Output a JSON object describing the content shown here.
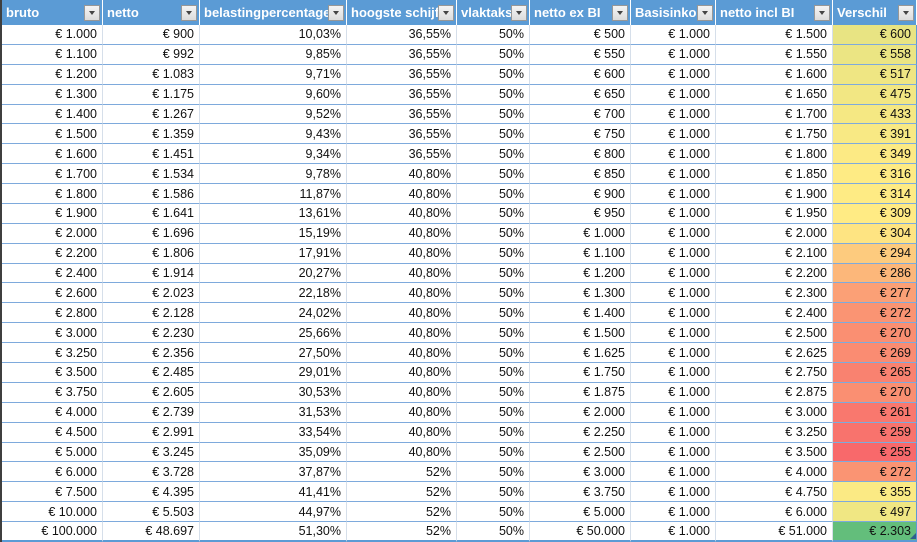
{
  "table": {
    "columns": [
      {
        "key": "bruto",
        "label": "bruto"
      },
      {
        "key": "netto",
        "label": "netto"
      },
      {
        "key": "belastingpercentage",
        "label": "belastingpercentage"
      },
      {
        "key": "hoogste_schijf",
        "label": "hoogste schijf"
      },
      {
        "key": "vlaktaks",
        "label": "vlaktaks"
      },
      {
        "key": "netto_ex_bi",
        "label": "netto ex BI"
      },
      {
        "key": "basisinkomen",
        "label": "Basisinkomen"
      },
      {
        "key": "netto_incl_bi",
        "label": "netto incl BI"
      },
      {
        "key": "verschil",
        "label": "Verschil"
      }
    ],
    "rows": [
      {
        "values": [
          "€ 1.000",
          "€ 900",
          "10,03%",
          "36,55%",
          "50%",
          "€ 500",
          "€ 1.000",
          "€ 1.500",
          "€ 600"
        ],
        "verschil_color": "#E8E483"
      },
      {
        "values": [
          "€ 1.100",
          "€ 992",
          "9,85%",
          "36,55%",
          "50%",
          "€ 550",
          "€ 1.000",
          "€ 1.550",
          "€ 558"
        ],
        "verschil_color": "#EBE583"
      },
      {
        "values": [
          "€ 1.200",
          "€ 1.083",
          "9,71%",
          "36,55%",
          "50%",
          "€ 600",
          "€ 1.000",
          "€ 1.600",
          "€ 517"
        ],
        "verschil_color": "#EFE683"
      },
      {
        "values": [
          "€ 1.300",
          "€ 1.175",
          "9,60%",
          "36,55%",
          "50%",
          "€ 650",
          "€ 1.000",
          "€ 1.650",
          "€ 475"
        ],
        "verschil_color": "#F2E783"
      },
      {
        "values": [
          "€ 1.400",
          "€ 1.267",
          "9,52%",
          "36,55%",
          "50%",
          "€ 700",
          "€ 1.000",
          "€ 1.700",
          "€ 433"
        ],
        "verschil_color": "#F5E883"
      },
      {
        "values": [
          "€ 1.500",
          "€ 1.359",
          "9,43%",
          "36,55%",
          "50%",
          "€ 750",
          "€ 1.000",
          "€ 1.750",
          "€ 391"
        ],
        "verschil_color": "#F8E984"
      },
      {
        "values": [
          "€ 1.600",
          "€ 1.451",
          "9,34%",
          "36,55%",
          "50%",
          "€ 800",
          "€ 1.000",
          "€ 1.800",
          "€ 349"
        ],
        "verschil_color": "#FCEA84"
      },
      {
        "values": [
          "€ 1.700",
          "€ 1.534",
          "9,78%",
          "40,80%",
          "50%",
          "€ 850",
          "€ 1.000",
          "€ 1.850",
          "€ 316"
        ],
        "verschil_color": "#FEEB84"
      },
      {
        "values": [
          "€ 1.800",
          "€ 1.586",
          "11,87%",
          "40,80%",
          "50%",
          "€ 900",
          "€ 1.000",
          "€ 1.900",
          "€ 314"
        ],
        "verschil_color": "#FEEB84"
      },
      {
        "values": [
          "€ 1.900",
          "€ 1.641",
          "13,61%",
          "40,80%",
          "50%",
          "€ 950",
          "€ 1.000",
          "€ 1.950",
          "€ 309"
        ],
        "verschil_color": "#FFEB84"
      },
      {
        "values": [
          "€ 2.000",
          "€ 1.696",
          "15,19%",
          "40,80%",
          "50%",
          "€ 1.000",
          "€ 1.000",
          "€ 2.000",
          "€ 304"
        ],
        "verschil_color": "#FEE482"
      },
      {
        "values": [
          "€ 2.200",
          "€ 1.806",
          "17,91%",
          "40,80%",
          "50%",
          "€ 1.100",
          "€ 1.000",
          "€ 2.100",
          "€ 294"
        ],
        "verschil_color": "#FDCB7E"
      },
      {
        "values": [
          "€ 2.400",
          "€ 1.914",
          "20,27%",
          "40,80%",
          "50%",
          "€ 1.200",
          "€ 1.000",
          "€ 2.200",
          "€ 286"
        ],
        "verschil_color": "#FCB77A"
      },
      {
        "values": [
          "€ 2.600",
          "€ 2.023",
          "22,18%",
          "40,80%",
          "50%",
          "€ 1.300",
          "€ 1.000",
          "€ 2.300",
          "€ 277"
        ],
        "verschil_color": "#FBA076"
      },
      {
        "values": [
          "€ 2.800",
          "€ 2.128",
          "24,02%",
          "40,80%",
          "50%",
          "€ 1.400",
          "€ 1.000",
          "€ 2.400",
          "€ 272"
        ],
        "verschil_color": "#FA9473"
      },
      {
        "values": [
          "€ 3.000",
          "€ 2.230",
          "25,66%",
          "40,80%",
          "50%",
          "€ 1.500",
          "€ 1.000",
          "€ 2.500",
          "€ 270"
        ],
        "verschil_color": "#FA8F72"
      },
      {
        "values": [
          "€ 3.250",
          "€ 2.356",
          "27,50%",
          "40,80%",
          "50%",
          "€ 1.625",
          "€ 1.000",
          "€ 2.625",
          "€ 269"
        ],
        "verschil_color": "#FA8C72"
      },
      {
        "values": [
          "€ 3.500",
          "€ 2.485",
          "29,01%",
          "40,80%",
          "50%",
          "€ 1.750",
          "€ 1.000",
          "€ 2.750",
          "€ 265"
        ],
        "verschil_color": "#F98270"
      },
      {
        "values": [
          "€ 3.750",
          "€ 2.605",
          "30,53%",
          "40,80%",
          "50%",
          "€ 1.875",
          "€ 1.000",
          "€ 2.875",
          "€ 270"
        ],
        "verschil_color": "#FA8F72"
      },
      {
        "values": [
          "€ 4.000",
          "€ 2.739",
          "31,53%",
          "40,80%",
          "50%",
          "€ 2.000",
          "€ 1.000",
          "€ 3.000",
          "€ 261"
        ],
        "verschil_color": "#F9786E"
      },
      {
        "values": [
          "€ 4.500",
          "€ 2.991",
          "33,54%",
          "40,80%",
          "50%",
          "€ 2.250",
          "€ 1.000",
          "€ 3.250",
          "€ 259"
        ],
        "verschil_color": "#F8736D"
      },
      {
        "values": [
          "€ 5.000",
          "€ 3.245",
          "35,09%",
          "40,80%",
          "50%",
          "€ 2.500",
          "€ 1.000",
          "€ 3.500",
          "€ 255"
        ],
        "verschil_color": "#F8696B"
      },
      {
        "values": [
          "€ 6.000",
          "€ 3.728",
          "37,87%",
          "52%",
          "50%",
          "€ 3.000",
          "€ 1.000",
          "€ 4.000",
          "€ 272"
        ],
        "verschil_color": "#FA9473"
      },
      {
        "values": [
          "€ 7.500",
          "€ 4.395",
          "41,41%",
          "52%",
          "50%",
          "€ 3.750",
          "€ 1.000",
          "€ 4.750",
          "€ 355"
        ],
        "verschil_color": "#FBEA84"
      },
      {
        "values": [
          "€ 10.000",
          "€ 5.503",
          "44,97%",
          "52%",
          "50%",
          "€ 5.000",
          "€ 1.000",
          "€ 6.000",
          "€ 497"
        ],
        "verschil_color": "#F0E783"
      },
      {
        "values": [
          "€ 100.000",
          "€ 48.697",
          "51,30%",
          "52%",
          "50%",
          "€ 50.000",
          "€ 1.000",
          "€ 51.000",
          "€ 2.303"
        ],
        "verschil_color": "#63BE7B"
      }
    ]
  },
  "colors": {
    "header_bg": "#5B9BD5",
    "header_text": "#FFFFFF",
    "row_line": "#7EAADC",
    "col_line": "#D6DFEA",
    "table_edge": "#5B9BD5",
    "left_edge": "#3F3F3F",
    "cell_text": "#111111",
    "handle": "#2E5E8C"
  }
}
